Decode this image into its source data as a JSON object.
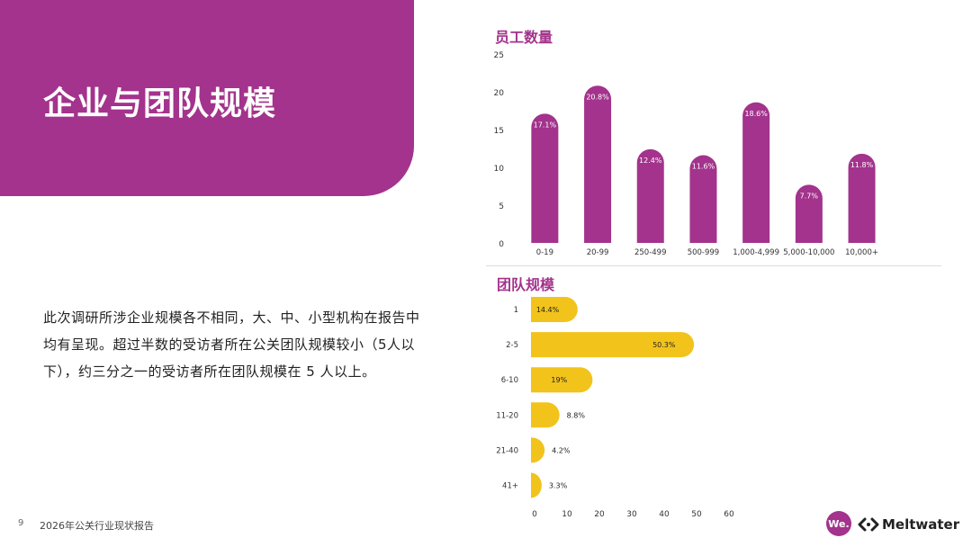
{
  "page": {
    "title": "企业与团队规模",
    "body": "此次调研所涉企业规模各不相同，大、中、小型机构在报告中均有呈现。超过半数的受访者所在公关团队规模较小（5人以下），约三分之一的受访者所在团队规模在 5 人以上。",
    "footer": {
      "page_number": "9",
      "report_title": "2026年公关行业现状报告"
    },
    "logos": {
      "we": "We.",
      "meltwater": "Meltwater"
    }
  },
  "colors": {
    "brand_purple": "#a3338c",
    "accent_yellow": "#f2c31b"
  },
  "chart_data": [
    {
      "type": "bar",
      "orientation": "vertical",
      "title": "员工数量",
      "categories": [
        "0-19",
        "20-99",
        "250-499",
        "500-999",
        "1,000-4,999",
        "5,000-10,000",
        "10,000+"
      ],
      "values": [
        17.1,
        20.8,
        12.4,
        11.6,
        18.6,
        7.7,
        11.8
      ],
      "data_labels": [
        "17.1%",
        "20.8%",
        "12.4%",
        "11.6%",
        "18.6%",
        "7.7%",
        "11.8%"
      ],
      "ylim": [
        0,
        25
      ],
      "yticks": [
        "0",
        "5",
        "10",
        "15",
        "20",
        "25"
      ],
      "ytick_values": [
        0,
        5,
        10,
        15,
        20,
        25
      ],
      "color": "#a3338c",
      "grid": false
    },
    {
      "type": "bar",
      "orientation": "horizontal",
      "title": "团队规模",
      "categories": [
        "1",
        "2-5",
        "6-10",
        "11-20",
        "21-40",
        "41+"
      ],
      "values": [
        14.4,
        50.3,
        19,
        8.8,
        4.2,
        3.3
      ],
      "data_labels": [
        "14.4%",
        "50.3%",
        "19%",
        "8.8%",
        "4.2%",
        "3.3%"
      ],
      "xlim": [
        0,
        60
      ],
      "xticks": [
        "0",
        "10",
        "20",
        "30",
        "40",
        "50",
        "60"
      ],
      "xtick_values": [
        0,
        10,
        20,
        30,
        40,
        50,
        60
      ],
      "color": "#f2c31b",
      "grid": false
    }
  ]
}
